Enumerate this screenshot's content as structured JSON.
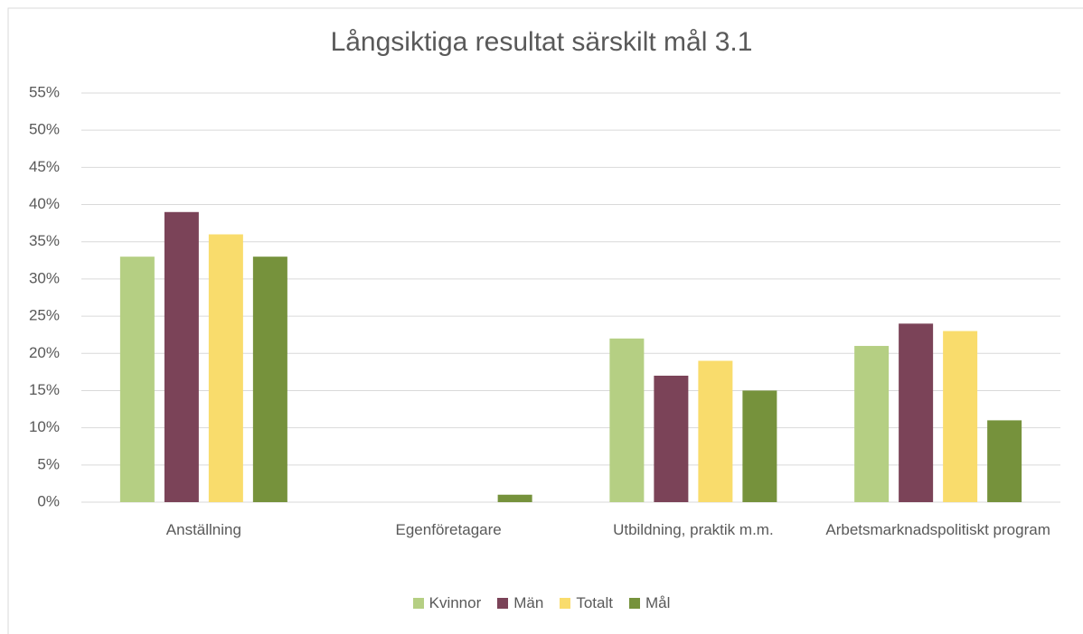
{
  "chart_data": {
    "type": "bar",
    "title": "Långsiktiga resultat särskilt mål 3.1",
    "categories": [
      "Anställning",
      "Egenföretagare",
      "Utbildning, praktik m.m.",
      "Arbetsmarknadspolitiskt program"
    ],
    "series": [
      {
        "name": "Kvinnor",
        "color": "#b5cf83",
        "values": [
          33,
          0,
          22,
          21
        ]
      },
      {
        "name": "Män",
        "color": "#7b4358",
        "values": [
          39,
          0,
          17,
          24
        ]
      },
      {
        "name": "Totalt",
        "color": "#f9dc6c",
        "values": [
          36,
          0,
          19,
          23
        ]
      },
      {
        "name": "Mål",
        "color": "#76923c",
        "values": [
          33,
          1,
          15,
          11
        ]
      }
    ],
    "ylim": [
      0,
      55
    ],
    "yticks": [
      {
        "value": 0,
        "label": "0%"
      },
      {
        "value": 5,
        "label": "5%"
      },
      {
        "value": 10,
        "label": "10%"
      },
      {
        "value": 15,
        "label": "15%"
      },
      {
        "value": 20,
        "label": "20%"
      },
      {
        "value": 25,
        "label": "25%"
      },
      {
        "value": 30,
        "label": "30%"
      },
      {
        "value": 35,
        "label": "35%"
      },
      {
        "value": 40,
        "label": "40%"
      },
      {
        "value": 45,
        "label": "45%"
      },
      {
        "value": 50,
        "label": "50%"
      },
      {
        "value": 55,
        "label": "55%"
      }
    ],
    "grid": true,
    "legend": "bottom"
  }
}
